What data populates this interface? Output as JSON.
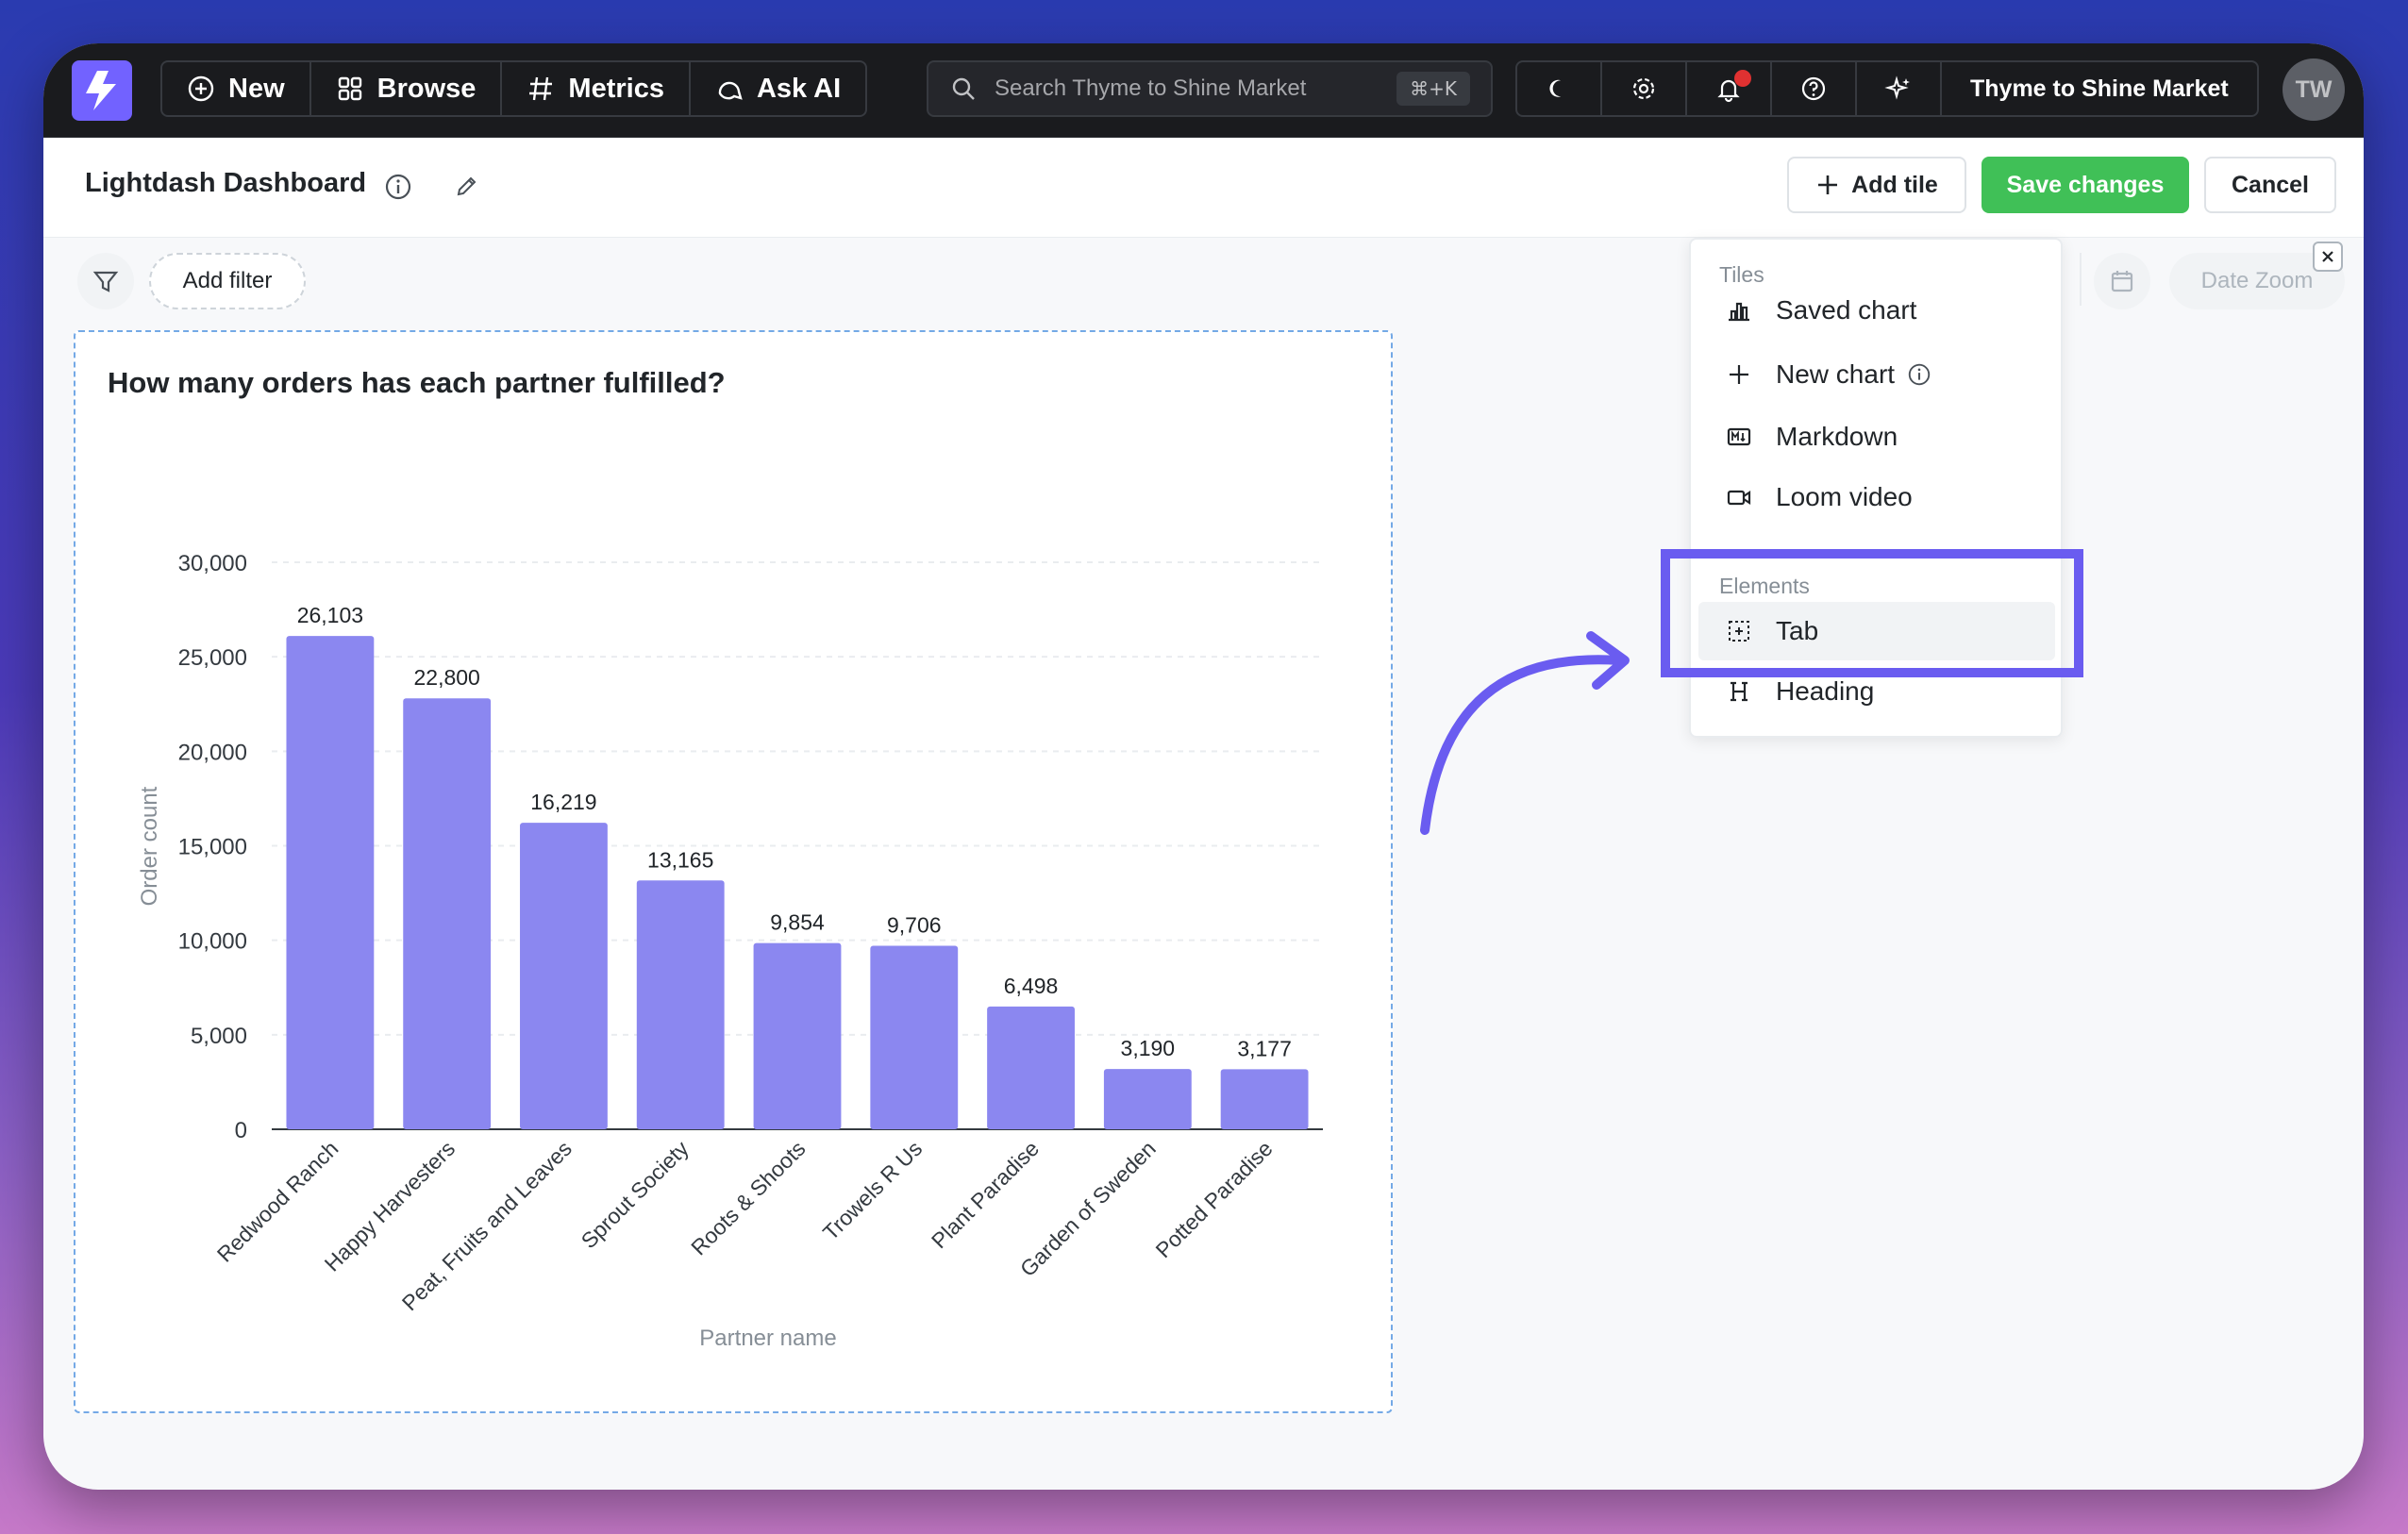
{
  "navbar": {
    "new_label": "New",
    "browse_label": "Browse",
    "metrics_label": "Metrics",
    "ask_ai_label": "Ask AI",
    "search_placeholder": "Search Thyme to Shine Market",
    "search_shortcut": "⌘+K",
    "org_name": "Thyme to Shine Market",
    "avatar_initials": "TW"
  },
  "header": {
    "title": "Lightdash Dashboard",
    "add_tile_label": "Add tile",
    "save_label": "Save changes",
    "cancel_label": "Cancel"
  },
  "filters": {
    "add_filter_label": "Add filter",
    "date_zoom_label": "Date Zoom"
  },
  "dropdown": {
    "tiles_section": "Tiles",
    "elements_section": "Elements",
    "items": [
      {
        "label": "Saved chart",
        "icon": "bar-chart-icon"
      },
      {
        "label": "New chart",
        "icon": "plus-icon"
      },
      {
        "label": "Markdown",
        "icon": "markdown-icon"
      },
      {
        "label": "Loom video",
        "icon": "video-icon"
      },
      {
        "label": "Tab",
        "icon": "tab-icon"
      },
      {
        "label": "Heading",
        "icon": "heading-icon"
      }
    ]
  },
  "colors": {
    "accent": "#7262ff",
    "bar": "#8b87f0",
    "save_green": "#40c057",
    "highlight": "#6a5cf0"
  },
  "chart_data": {
    "type": "bar",
    "title": "How many orders has each partner fulfilled?",
    "xlabel": "Partner name",
    "ylabel": "Order count",
    "categories": [
      "Redwood Ranch",
      "Happy Harvesters",
      "Peat, Fruits and Leaves",
      "Sprout Society",
      "Roots & Shoots",
      "Trowels R Us",
      "Plant Paradise",
      "Garden of Sweden",
      "Potted Paradise"
    ],
    "values": [
      26103,
      22800,
      16219,
      13165,
      9854,
      9706,
      6498,
      3190,
      3177
    ],
    "value_labels": [
      "26,103",
      "22,800",
      "16,219",
      "13,165",
      "9,854",
      "9,706",
      "6,498",
      "3,190",
      "3,177"
    ],
    "ylim": [
      0,
      30000
    ],
    "yticks": [
      "0",
      "5,000",
      "10,000",
      "15,000",
      "20,000",
      "25,000",
      "30,000"
    ],
    "grid": true
  }
}
